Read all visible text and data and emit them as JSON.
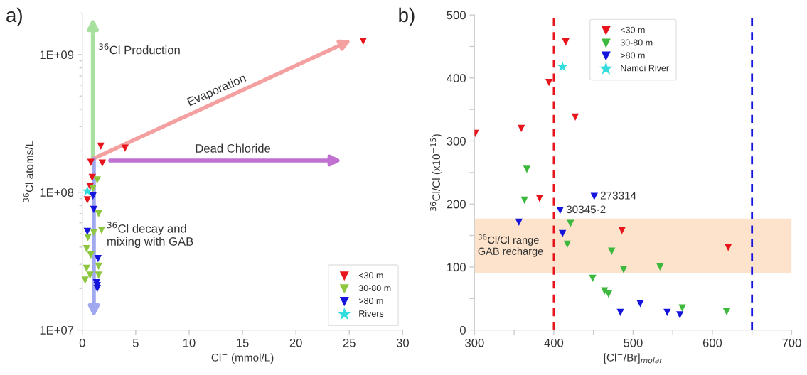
{
  "chart_data": [
    {
      "type": "scatter",
      "title": "a)",
      "xlabel": "Cl$^{−}$ (mmol/L)",
      "ylabel": "$^{36}$Cl atoms/L",
      "log": "y",
      "xlim": [
        0,
        30
      ],
      "xticks": [
        0,
        5,
        10,
        15,
        20,
        25,
        30
      ],
      "ylim": [
        10000000,
        2000000000
      ],
      "yticks": [
        {
          "value": 10000000,
          "label": "1E+07"
        },
        {
          "value": 100000000,
          "label": "1E+08"
        },
        {
          "value": 1000000000,
          "label": "1E+09"
        }
      ],
      "legend": "bottom right",
      "marker": "triangle",
      "grid": false,
      "annotations": [
        "$^{36}$Cl Production",
        "Evaporation",
        "Dead Chloride",
        "$^{36}$Cl decay and\nmixing with GAB"
      ],
      "series": [
        {
          "name": "<30 m",
          "color": "#e8141c",
          "x": [
            0.8,
            1.87,
            0.93,
            0.73,
            0.47,
            1.73,
            4.0,
            26.3
          ],
          "values": [
            165000000,
            163000000,
            128000000,
            110000000,
            88000000,
            216000000,
            209000000,
            1250000000
          ]
        },
        {
          "name": "30-80 m",
          "color": "#8dc63f",
          "x": [
            1.4,
            1.0,
            1.53,
            1.07,
            1.8,
            0.53,
            0.4,
            0.8,
            1.53,
            0.4,
            0.73,
            1.53,
            0.27
          ],
          "values": [
            123000000,
            107000000,
            70000000,
            51000000,
            53000000,
            47000000,
            39000000,
            35000000,
            29000000,
            28000000,
            25000000,
            25000000,
            23000000
          ]
        },
        {
          "name": ">80 m",
          "color": "#1414dc",
          "x": [
            1.0,
            1.07,
            0.47,
            1.47,
            1.33,
            1.4,
            1.4
          ],
          "values": [
            94000000,
            75000000,
            52000000,
            33000000,
            22000000,
            21000000,
            20000000
          ]
        },
        {
          "name": "Rivers",
          "color": "#33dddd",
          "marker": "star",
          "x": [
            0.47
          ],
          "values": [
            102000000
          ]
        }
      ]
    },
    {
      "type": "scatter",
      "title": "b)",
      "xlabel": "[Cl$^{−}$/Br]$_{molar}$",
      "ylabel": "$^{36}$Cl/Cl (x10$^{−15}$)",
      "xlim": [
        300,
        700
      ],
      "xticks": [
        300,
        {
          "value": 350,
          "label": null
        },
        400,
        {
          "value": 450,
          "label": null
        },
        500,
        {
          "value": 550,
          "label": null
        },
        600,
        {
          "value": 650,
          "label": null
        },
        700
      ],
      "ylim": [
        0,
        500
      ],
      "yticks": [
        0,
        {
          "value": 50,
          "label": null
        },
        100,
        {
          "value": 150,
          "label": null
        },
        200,
        {
          "value": 250,
          "label": null
        },
        300,
        {
          "value": 350,
          "label": null
        },
        400,
        {
          "value": 450,
          "label": null
        },
        500
      ],
      "legend": "top",
      "marker": "triangle",
      "grid": false,
      "bands": [
        {
          "axis": "y",
          "from": 91,
          "to": 177,
          "label": "$^{36}$Cl/Cl range\nGAB recharge",
          "color": "#fde3cc"
        }
      ],
      "ref_lines": [
        {
          "axis": "x",
          "value": 400,
          "color": "#e8141c",
          "line_style": "dashed"
        },
        {
          "axis": "x",
          "value": 650,
          "color": "#1414dc",
          "line_style": "dashed"
        }
      ],
      "annotations": [
        {
          "text": "273314",
          "x": 451,
          "y": 212
        },
        {
          "text": "30345-2",
          "x": 408,
          "y": 190
        }
      ],
      "series": [
        {
          "name": "<30 m",
          "color": "#e8141c",
          "x": [
            301,
            359,
            394,
            415,
            427,
            382,
            486,
            620
          ],
          "values": [
            312,
            320,
            393,
            457,
            338,
            209,
            158,
            131
          ]
        },
        {
          "name": "30-80 m",
          "color": "#3cb83c",
          "x": [
            366,
            363,
            421,
            417,
            473,
            488,
            449,
            464,
            469,
            534,
            562,
            618
          ],
          "values": [
            255,
            206,
            169,
            136,
            125,
            96,
            82,
            62,
            57,
            100,
            35,
            29
          ]
        },
        {
          "name": ">80 m",
          "color": "#1414dc",
          "x": [
            356,
            408,
            451,
            411,
            484,
            509,
            543,
            559
          ],
          "values": [
            171,
            190,
            212,
            153,
            28,
            42,
            28,
            24
          ]
        },
        {
          "name": "Namoi River",
          "color": "#33dddd",
          "marker": "star",
          "x": [
            411
          ],
          "values": [
            418
          ]
        }
      ]
    }
  ]
}
